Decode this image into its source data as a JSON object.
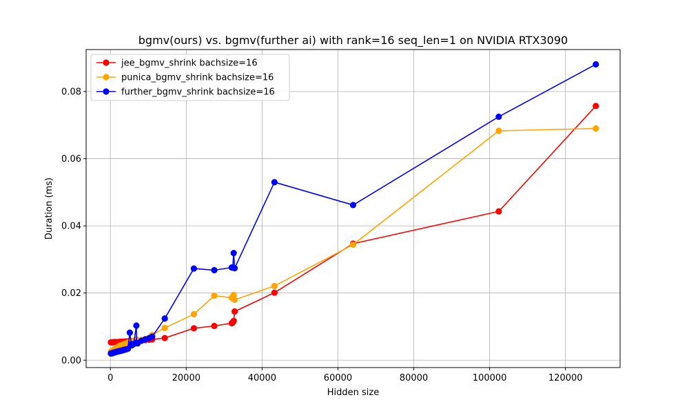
{
  "chart_data": {
    "type": "line",
    "title": "bgmv(ours) vs. bgmv(further ai) with rank=16 seq_len=1 on NVIDIA RTX3090",
    "xlabel": "Hidden size",
    "ylabel": "Duration (ms)",
    "xlim": [
      -6400,
      134400
    ],
    "ylim": [
      -0.0022,
      0.0925
    ],
    "xticks": [
      0,
      20000,
      40000,
      60000,
      80000,
      100000,
      120000
    ],
    "xtick_labels": [
      "0",
      "20000",
      "40000",
      "60000",
      "80000",
      "100000",
      "120000"
    ],
    "yticks": [
      0.0,
      0.02,
      0.04,
      0.06,
      0.08
    ],
    "ytick_labels": [
      "0.00",
      "0.02",
      "0.04",
      "0.06",
      "0.08"
    ],
    "grid": true,
    "legend_position": "top-left",
    "series": [
      {
        "name": "jee_bgmv_shrink bachsize=16",
        "color": "#ff0000",
        "x": [
          128,
          256,
          512,
          640,
          768,
          1024,
          1152,
          1280,
          1536,
          1664,
          2048,
          2304,
          2560,
          2752,
          3072,
          3456,
          3584,
          4096,
          4608,
          5120,
          5504,
          5632,
          6144,
          6848,
          6912,
          7168,
          8192,
          9216,
          10240,
          11008,
          14336,
          22016,
          27392,
          32000,
          32256,
          32512,
          32768,
          43264,
          64000,
          102400,
          128000
        ],
        "y": [
          0.0053,
          0.0053,
          0.0053,
          0.0053,
          0.0053,
          0.0054,
          0.0054,
          0.0054,
          0.0054,
          0.0054,
          0.0054,
          0.0054,
          0.0055,
          0.0055,
          0.0055,
          0.0055,
          0.0055,
          0.0056,
          0.0056,
          0.0056,
          0.0057,
          0.0057,
          0.0057,
          0.0058,
          0.0058,
          0.0058,
          0.0059,
          0.006,
          0.0061,
          0.0062,
          0.0066,
          0.0095,
          0.0102,
          0.011,
          0.0112,
          0.0117,
          0.0145,
          0.0201,
          0.0347,
          0.0443,
          0.0757
        ]
      },
      {
        "name": "punica_bgmv_shrink bachsize=16",
        "color": "#ffa500",
        "x": [
          128,
          256,
          512,
          640,
          768,
          1024,
          1152,
          1280,
          1536,
          1664,
          2048,
          2304,
          2560,
          2752,
          3072,
          3456,
          3584,
          4096,
          4608,
          5120,
          5504,
          5632,
          6144,
          6848,
          6912,
          7168,
          8192,
          9216,
          10240,
          11008,
          14336,
          22016,
          27392,
          32000,
          32256,
          32512,
          32768,
          43264,
          64000,
          102400,
          128000
        ],
        "y": [
          0.0025,
          0.0026,
          0.0028,
          0.0029,
          0.003,
          0.0032,
          0.0033,
          0.0034,
          0.0036,
          0.0038,
          0.004,
          0.0042,
          0.0043,
          0.0044,
          0.0046,
          0.0047,
          0.0048,
          0.005,
          0.0052,
          0.0054,
          0.0055,
          0.0056,
          0.0058,
          0.0062,
          0.006,
          0.0058,
          0.006,
          0.0063,
          0.0066,
          0.0075,
          0.0096,
          0.0137,
          0.0192,
          0.0186,
          0.0184,
          0.0194,
          0.018,
          0.0221,
          0.0344,
          0.0683,
          0.069
        ]
      },
      {
        "name": "further_bgmv_shrink bachsize=16",
        "color": "#0000ff",
        "x": [
          128,
          256,
          512,
          640,
          768,
          1024,
          1152,
          1280,
          1536,
          1664,
          2048,
          2304,
          2560,
          2752,
          3072,
          3456,
          3584,
          4096,
          4608,
          5120,
          5504,
          5632,
          6144,
          6848,
          6912,
          7168,
          8192,
          9216,
          10240,
          11008,
          14336,
          22016,
          27392,
          32000,
          32256,
          32512,
          32768,
          43264,
          64000,
          102400,
          128000
        ],
        "y": [
          0.002,
          0.002,
          0.0021,
          0.0021,
          0.0022,
          0.0023,
          0.0023,
          0.0024,
          0.0025,
          0.0025,
          0.0026,
          0.0027,
          0.0028,
          0.0028,
          0.0029,
          0.003,
          0.0031,
          0.0032,
          0.0034,
          0.0082,
          0.0048,
          0.0044,
          0.0048,
          0.0103,
          0.0052,
          0.005,
          0.0058,
          0.0062,
          0.0066,
          0.007,
          0.0124,
          0.0273,
          0.0268,
          0.0276,
          0.0276,
          0.0319,
          0.0274,
          0.053,
          0.0462,
          0.0725,
          0.0881
        ]
      }
    ]
  }
}
